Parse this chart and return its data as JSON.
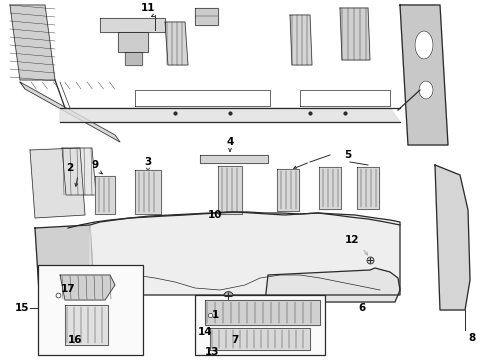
{
  "bg_color": "#ffffff",
  "line_color": "#2a2a2a",
  "fig_w": 4.9,
  "fig_h": 3.6,
  "dpi": 100,
  "lw_main": 0.9,
  "lw_thin": 0.5,
  "lw_thick": 1.4,
  "label_fs": 7.5
}
